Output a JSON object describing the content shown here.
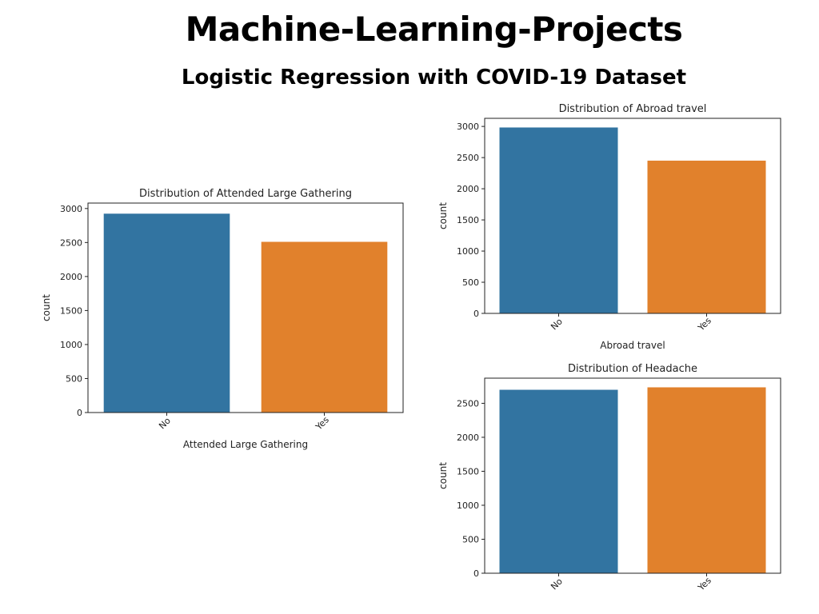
{
  "page": {
    "title": "Machine-Learning-Projects",
    "subtitle": "Logistic Regression with COVID-19 Dataset"
  },
  "colors": {
    "no": "#3274a1",
    "yes": "#e1812c"
  },
  "chart_data": [
    {
      "id": "gathering",
      "type": "bar",
      "title": "Distribution of Attended Large Gathering",
      "xlabel": "Attended Large Gathering",
      "ylabel": "count",
      "categories": [
        "No",
        "Yes"
      ],
      "values": [
        2924,
        2510
      ],
      "ylim": [
        0,
        3080
      ],
      "yticks": [
        0,
        500,
        1000,
        1500,
        2000,
        2500,
        3000
      ],
      "grid": false
    },
    {
      "id": "abroad",
      "type": "bar",
      "title": "Distribution of Abroad travel",
      "xlabel": "Abroad travel",
      "ylabel": "count",
      "categories": [
        "No",
        "Yes"
      ],
      "values": [
        2983,
        2451
      ],
      "ylim": [
        0,
        3130
      ],
      "yticks": [
        0,
        500,
        1000,
        1500,
        2000,
        2500,
        3000
      ],
      "grid": false
    },
    {
      "id": "headache",
      "type": "bar",
      "title": "Distribution of Headache",
      "xlabel": "",
      "ylabel": "count",
      "categories": [
        "No",
        "Yes"
      ],
      "values": [
        2699,
        2735
      ],
      "ylim": [
        0,
        2870
      ],
      "yticks": [
        0,
        500,
        1000,
        1500,
        2000,
        2500
      ],
      "grid": false
    }
  ]
}
